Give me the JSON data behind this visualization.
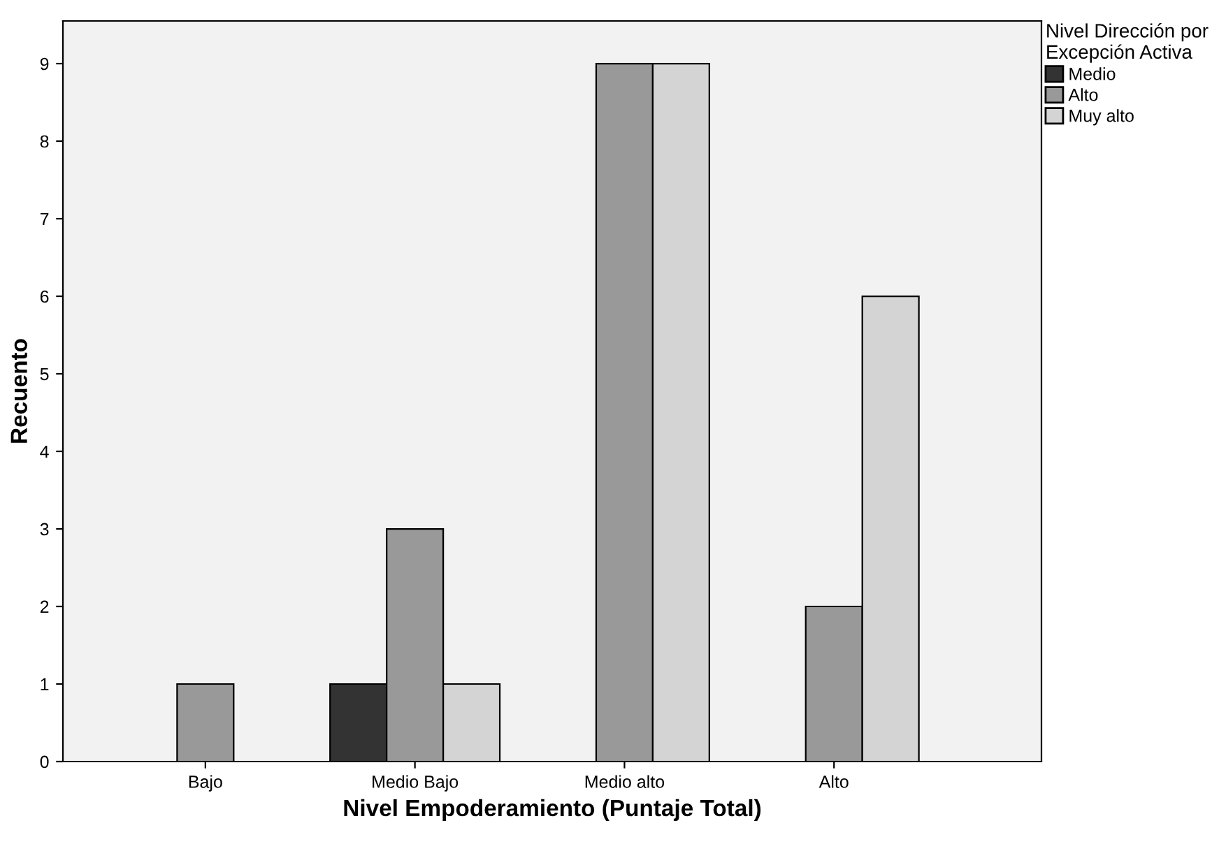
{
  "chart_data": {
    "type": "bar",
    "xlabel": "Nivel Empoderamiento (Puntaje Total)",
    "ylabel": "Recuento",
    "legend_title": "Nivel Dirección por\nExcepción Activa",
    "categories": [
      "Bajo",
      "Medio Bajo",
      "Medio alto",
      "Alto"
    ],
    "series": [
      {
        "name": "Medio",
        "color": "#333333",
        "values": [
          null,
          1,
          null,
          null
        ]
      },
      {
        "name": "Alto",
        "color": "#999999",
        "values": [
          1,
          3,
          9,
          2
        ]
      },
      {
        "name": "Muy alto",
        "color": "#d4d4d4",
        "values": [
          null,
          1,
          9,
          6
        ]
      }
    ],
    "ylim": [
      0,
      9.55
    ],
    "yticks": [
      0,
      1,
      2,
      3,
      4,
      5,
      6,
      7,
      8,
      9
    ],
    "grid": false,
    "legend": "top right"
  }
}
